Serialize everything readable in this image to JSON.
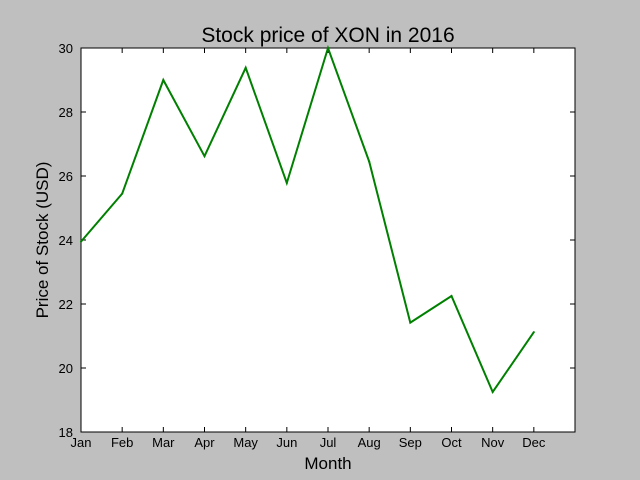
{
  "chart_data": {
    "type": "line",
    "title": "Stock price of XON in 2016",
    "xlabel": "Month",
    "ylabel": "Price of Stock (USD)",
    "categories": [
      "Jan",
      "Feb",
      "Mar",
      "Apr",
      "May",
      "Jun",
      "Jul",
      "Aug",
      "Sep",
      "Oct",
      "Nov",
      "Dec"
    ],
    "series": [
      {
        "values": [
          23.95,
          25.45,
          29.0,
          26.62,
          29.38,
          25.78,
          30.0,
          26.45,
          21.42,
          22.25,
          19.25,
          21.12
        ],
        "color": "#008000"
      }
    ],
    "xlim": [
      0,
      12
    ],
    "ylim": [
      18,
      30
    ],
    "yticks": [
      18,
      20,
      22,
      24,
      26,
      28,
      30
    ],
    "grid": false,
    "legend": "none",
    "plot_background": "#ffffff",
    "figure_background": "#bfbfbf"
  }
}
